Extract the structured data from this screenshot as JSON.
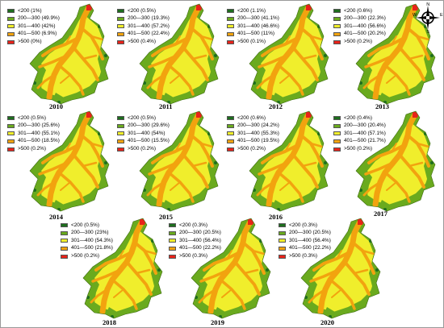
{
  "map": {
    "classes": [
      {
        "label": "<200",
        "color": "#1e6e1e"
      },
      {
        "label": "200—300",
        "color": "#6aaa1e"
      },
      {
        "label": "301—400",
        "color": "#f0ee2c"
      },
      {
        "label": "401—500",
        "color": "#f2a30f"
      },
      {
        "label": ">500",
        "color": "#e8231a"
      }
    ],
    "panels": [
      {
        "year": "2010",
        "legend": [
          "<200 (1%)",
          "200—300 (49.9%)",
          "301—400 (42%)",
          "401—500 (6.9%)",
          ">500 (0%)"
        ]
      },
      {
        "year": "2011",
        "legend": [
          "<200 (0.5%)",
          "200—300 (19.3%)",
          "301—400 (57.2%)",
          "401—500 (22.4%)",
          ">500 (0.4%)"
        ]
      },
      {
        "year": "2012",
        "legend": [
          "<200 (1.1%)",
          "200—300 (41.1%)",
          "301—400 (46.6%)",
          "401—500 (11%)",
          ">500 (0.1%)"
        ]
      },
      {
        "year": "2013",
        "legend": [
          "<200 (0.6%)",
          "200—300 (22.3%)",
          "301—400 (56.6%)",
          "401—500 (20.2%)",
          ">500 (0.2%)"
        ]
      },
      {
        "year": "2014",
        "legend": [
          "<200 (0.5%)",
          "200—300 (25.6%)",
          "301—400 (55.1%)",
          "401—500 (18.5%)",
          ">500 (0.2%)"
        ]
      },
      {
        "year": "2015",
        "legend": [
          "<200 (0.5%)",
          "200—300 (29.6%)",
          "301—400 (54%)",
          "401—500 (15.5%)",
          ">500 (0.2%)"
        ]
      },
      {
        "year": "2016",
        "legend": [
          "<200 (0.6%)",
          "200—300 (24.2%)",
          "301—400 (55.3%)",
          "401—500 (19.5%)",
          ">500 (0.2%)"
        ]
      },
      {
        "year": "2017",
        "legend": [
          "<200 (0.4%)",
          "200—300 (20.4%)",
          "301—400 (57.1%)",
          "401—500 (21.7%)",
          ">500 (0.2%)"
        ]
      },
      {
        "year": "2018",
        "legend": [
          "<200 (0.5%)",
          "200—300 (23%)",
          "301—400 (54.3%)",
          "401—500 (21.8%)",
          ">500 (0.2%)"
        ]
      },
      {
        "year": "2019",
        "legend": [
          "<200 (0.3%)",
          "200—300 (20.5%)",
          "301—400 (56.4%)",
          "401—500 (22.2%)",
          ">500 (0.3%)"
        ]
      },
      {
        "year": "2020",
        "legend": [
          "<200 (0.3%)",
          "200—300 (20.5%)",
          "301—400 (56.4%)",
          "401—500 (22.2%)",
          ">500 (0.3%)"
        ]
      }
    ],
    "north_arrow": {
      "n": "N",
      "s": "S",
      "e": "E",
      "w": "W"
    }
  }
}
